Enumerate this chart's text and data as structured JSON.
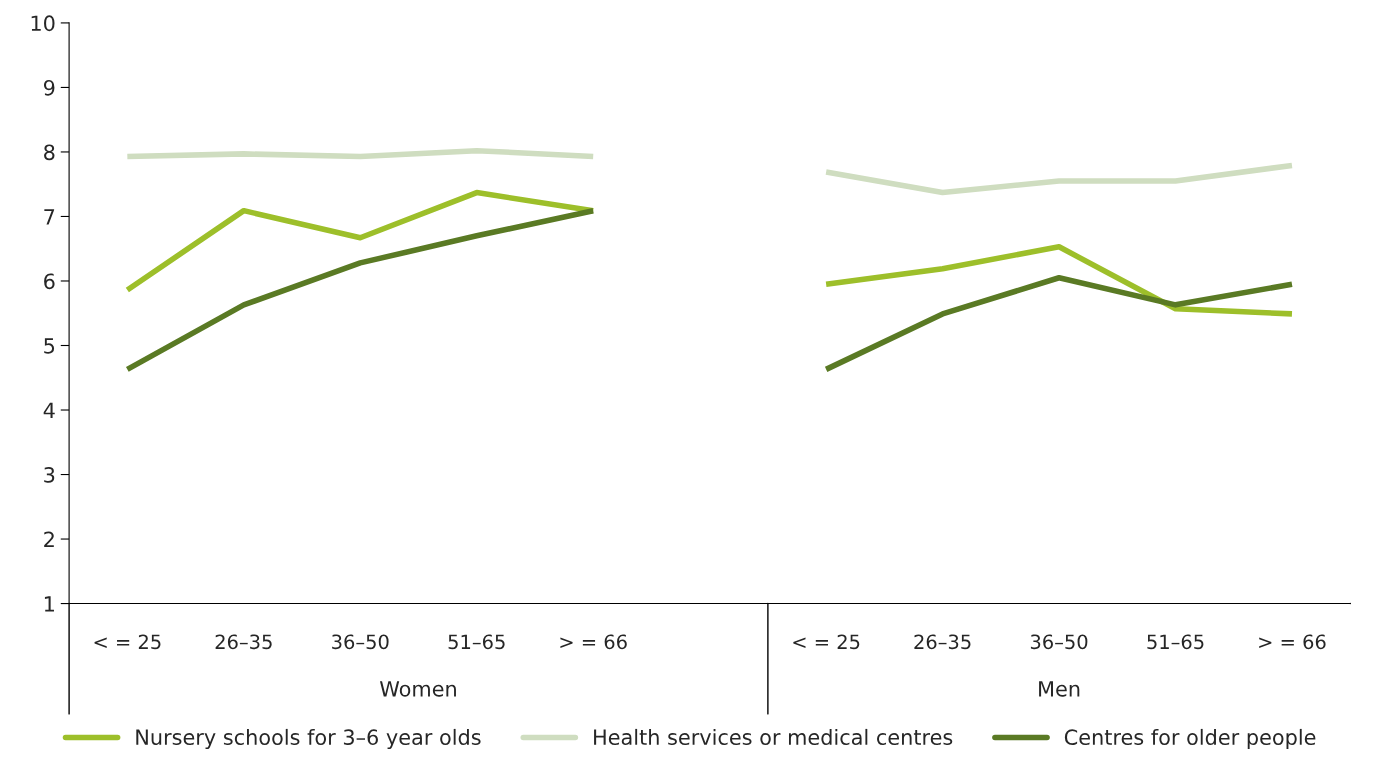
{
  "chart_data": {
    "type": "line",
    "categories": [
      "< = 25",
      "26–35",
      "36–50",
      "51–65",
      "> = 66",
      null,
      "< = 25",
      "26–35",
      "36–50",
      "51–65",
      "> = 66"
    ],
    "series": [
      {
        "name": "Nursery schools for 3–6 year olds",
        "color": "#9dbf2a",
        "values": [
          5.86,
          7.09,
          6.67,
          7.37,
          7.09,
          null,
          5.95,
          6.19,
          6.53,
          5.57,
          5.49
        ]
      },
      {
        "name": "Health services or medical centres",
        "color": "#cfddc0",
        "values": [
          7.93,
          7.97,
          7.93,
          8.02,
          7.93,
          null,
          7.69,
          7.37,
          7.55,
          7.55,
          7.79
        ]
      },
      {
        "name": "Centres for older people",
        "color": "#5a7a24",
        "values": [
          4.63,
          5.63,
          6.28,
          6.7,
          7.09,
          null,
          4.63,
          5.49,
          6.05,
          5.63,
          5.95
        ]
      }
    ],
    "annotations": [
      "Women",
      "Men"
    ],
    "ylim": [
      1,
      10
    ],
    "yticks": [
      1,
      2,
      3,
      4,
      5,
      6,
      7,
      8,
      9,
      10
    ],
    "grid": false,
    "legend": "bottom",
    "marker": "none",
    "line_style": "solid"
  }
}
